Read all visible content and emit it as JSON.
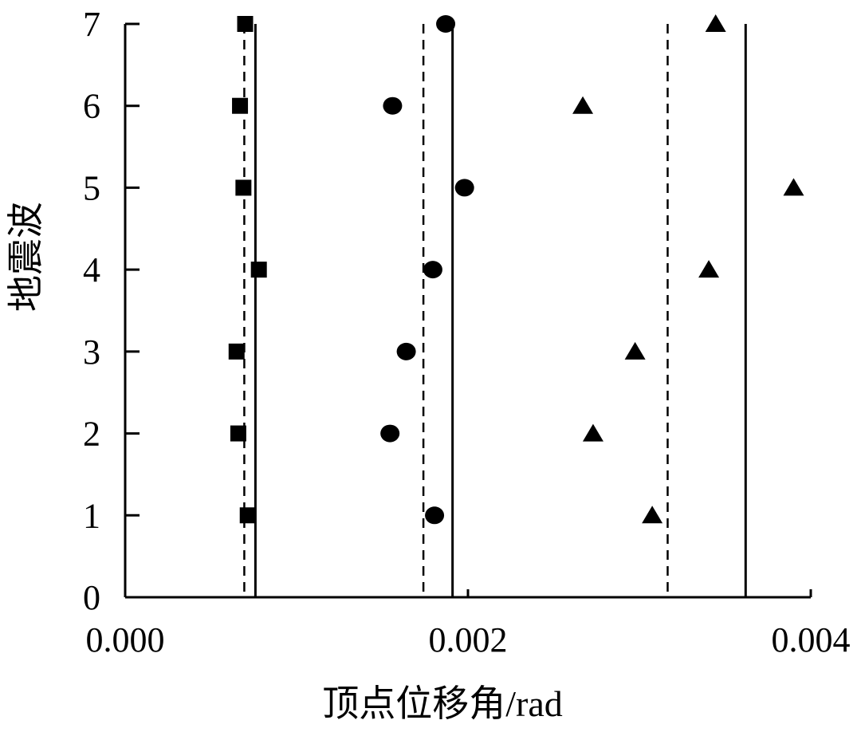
{
  "chart_data": {
    "type": "scatter",
    "title": "",
    "xlabel": "顶点位移角/rad",
    "ylabel": "地震波",
    "xlim": [
      0,
      0.004
    ],
    "ylim": [
      0,
      7
    ],
    "x_ticks": [
      "0.000",
      "0.002",
      "0.004"
    ],
    "y_ticks": [
      "0",
      "1",
      "2",
      "3",
      "4",
      "5",
      "6",
      "7"
    ],
    "grid": false,
    "legend": "none",
    "series": [
      {
        "marker": "square",
        "color": "#000000",
        "points": [
          {
            "x": 0.000715,
            "y": 1
          },
          {
            "x": 0.00066,
            "y": 2
          },
          {
            "x": 0.00065,
            "y": 3
          },
          {
            "x": 0.00078,
            "y": 4
          },
          {
            "x": 0.00069,
            "y": 5
          },
          {
            "x": 0.00067,
            "y": 6
          },
          {
            "x": 0.0007,
            "y": 7
          }
        ]
      },
      {
        "marker": "circle",
        "color": "#000000",
        "points": [
          {
            "x": 0.001805,
            "y": 1
          },
          {
            "x": 0.001545,
            "y": 2
          },
          {
            "x": 0.00164,
            "y": 3
          },
          {
            "x": 0.001795,
            "y": 4
          },
          {
            "x": 0.00198,
            "y": 5
          },
          {
            "x": 0.00156,
            "y": 6
          },
          {
            "x": 0.00187,
            "y": 7
          }
        ]
      },
      {
        "marker": "triangle",
        "color": "#000000",
        "points": [
          {
            "x": 0.003075,
            "y": 1
          },
          {
            "x": 0.00273,
            "y": 2
          },
          {
            "x": 0.002975,
            "y": 3
          },
          {
            "x": 0.003405,
            "y": 4
          },
          {
            "x": 0.0039,
            "y": 5
          },
          {
            "x": 0.00267,
            "y": 6
          },
          {
            "x": 0.003445,
            "y": 7
          }
        ]
      }
    ],
    "reference_lines": [
      {
        "style": "dashed",
        "x": 0.000695
      },
      {
        "style": "solid",
        "x": 0.00076
      },
      {
        "style": "dashed",
        "x": 0.00174
      },
      {
        "style": "solid",
        "x": 0.00191
      },
      {
        "style": "dashed",
        "x": 0.003165
      },
      {
        "style": "solid",
        "x": 0.00362
      }
    ]
  }
}
